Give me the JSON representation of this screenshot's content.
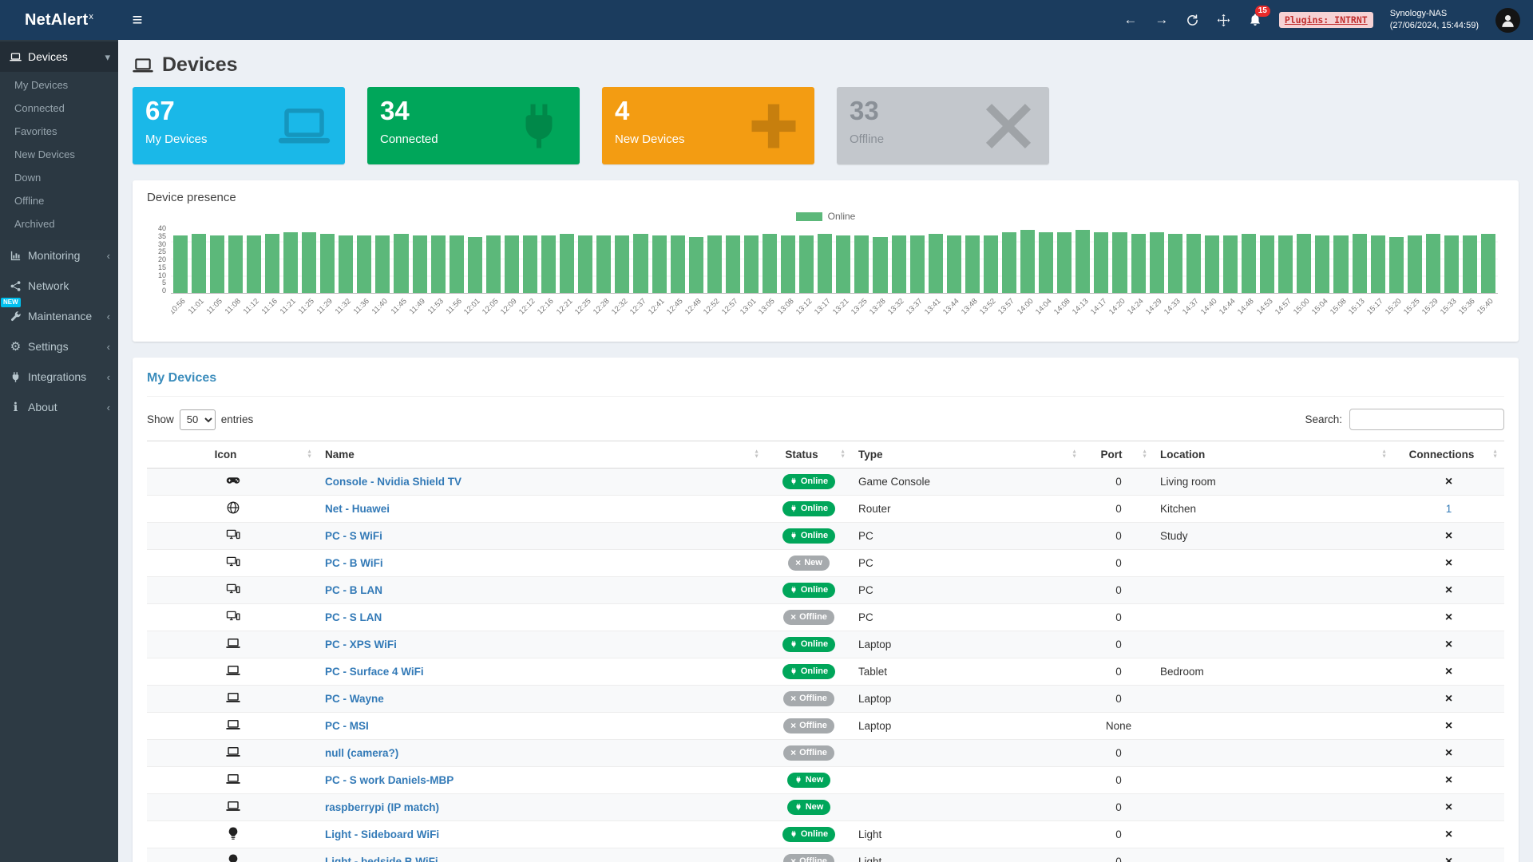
{
  "app": {
    "brand": "NetAlert",
    "brand_sup": "x"
  },
  "topbar": {
    "notifications": "15",
    "plugins_badge": "Plugins: INTRNT",
    "host": "Synology-NAS",
    "timestamp": "(27/06/2024, 15:44:59)"
  },
  "sidebar": {
    "items": [
      {
        "label": "Devices",
        "icon": "laptop-icon",
        "chevron": "down",
        "active": true,
        "children": [
          "My Devices",
          "Connected",
          "Favorites",
          "New Devices",
          "Down",
          "Offline",
          "Archived"
        ]
      },
      {
        "label": "Monitoring",
        "icon": "chart-icon",
        "chevron": "left"
      },
      {
        "label": "Network",
        "icon": "network-icon"
      },
      {
        "label": "Maintenance",
        "icon": "wrench-icon",
        "chevron": "left",
        "badge": "NEW"
      },
      {
        "label": "Settings",
        "icon": "gear-icon",
        "chevron": "left"
      },
      {
        "label": "Integrations",
        "icon": "plug-icon",
        "chevron": "left"
      },
      {
        "label": "About",
        "icon": "info-icon",
        "chevron": "left"
      }
    ]
  },
  "page": {
    "title": "Devices"
  },
  "summary_boxes": [
    {
      "value": "67",
      "label": "My Devices",
      "icon": "laptop-icon",
      "bg": "#1ab8e8",
      "text": "#ffffff"
    },
    {
      "value": "34",
      "label": "Connected",
      "icon": "plug-icon",
      "bg": "#00a65a",
      "text": "#ffffff"
    },
    {
      "value": "4",
      "label": "New Devices",
      "icon": "plus-icon",
      "bg": "#f39c12",
      "text": "#ffffff"
    },
    {
      "value": "33",
      "label": "Offline",
      "icon": "xmark-icon",
      "bg": "#c3c7cc",
      "text": "#8a9097"
    }
  ],
  "presence_panel": {
    "title": "Device presence",
    "legend": "Online"
  },
  "chart_data": {
    "type": "bar",
    "title": "Device presence",
    "series_name": "Online",
    "color": "#5cb87a",
    "xlabel": "",
    "ylabel": "",
    "ylim": [
      0,
      40
    ],
    "ytick_step": 5,
    "legend_position": "top",
    "grid": true,
    "categories": [
      "10:56",
      "11:01",
      "11:05",
      "11:08",
      "11:12",
      "11:16",
      "11:21",
      "11:25",
      "11:29",
      "11:32",
      "11:36",
      "11:40",
      "11:45",
      "11:49",
      "11:53",
      "11:56",
      "12:01",
      "12:05",
      "12:09",
      "12:12",
      "12:16",
      "12:21",
      "12:25",
      "12:28",
      "12:32",
      "12:37",
      "12:41",
      "12:45",
      "12:48",
      "12:52",
      "12:57",
      "13:01",
      "13:05",
      "13:08",
      "13:12",
      "13:17",
      "13:21",
      "13:25",
      "13:28",
      "13:32",
      "13:37",
      "13:41",
      "13:44",
      "13:48",
      "13:52",
      "13:57",
      "14:00",
      "14:04",
      "14:08",
      "14:13",
      "14:17",
      "14:20",
      "14:24",
      "14:29",
      "14:33",
      "14:37",
      "14:40",
      "14:44",
      "14:48",
      "14:53",
      "14:57",
      "15:00",
      "15:04",
      "15:08",
      "15:13",
      "15:17",
      "15:20",
      "15:25",
      "15:29",
      "15:33",
      "15:36",
      "15:40"
    ],
    "values": [
      34,
      35,
      34,
      34,
      34,
      35,
      36,
      36,
      35,
      34,
      34,
      34,
      35,
      34,
      34,
      34,
      33,
      34,
      34,
      34,
      34,
      35,
      34,
      34,
      34,
      35,
      34,
      34,
      33,
      34,
      34,
      34,
      35,
      34,
      34,
      35,
      34,
      34,
      33,
      34,
      34,
      35,
      34,
      34,
      34,
      36,
      37,
      36,
      36,
      37,
      36,
      36,
      35,
      36,
      35,
      35,
      34,
      34,
      35,
      34,
      34,
      35,
      34,
      34,
      35,
      34,
      33,
      34,
      35,
      34,
      34,
      35
    ]
  },
  "devices_panel": {
    "title": "My Devices",
    "show_label": "Show",
    "page_length": "50",
    "entries_label": "entries",
    "search_label": "Search:",
    "columns": [
      "Icon",
      "Name",
      "Status",
      "Type",
      "Port",
      "Location",
      "Connections"
    ],
    "rows": [
      {
        "icon": "gamepad-icon",
        "name": "Console - Nvidia Shield TV",
        "status": "Online",
        "status_color": "green",
        "status_icon": "plug",
        "type": "Game Console",
        "port": "0",
        "location": "Living room",
        "connections": ""
      },
      {
        "icon": "globe-icon",
        "name": "Net - Huawei",
        "status": "Online",
        "status_color": "green",
        "status_icon": "plug",
        "type": "Router",
        "port": "0",
        "location": "Kitchen",
        "connections": "1"
      },
      {
        "icon": "desktop-icon",
        "name": "PC - S WiFi",
        "status": "Online",
        "status_color": "green",
        "status_icon": "plug",
        "type": "PC",
        "port": "0",
        "location": "Study",
        "connections": ""
      },
      {
        "icon": "desktop-icon",
        "name": "PC - B WiFi",
        "status": "New",
        "status_color": "gray",
        "status_icon": "x",
        "type": "PC",
        "port": "0",
        "location": "",
        "connections": ""
      },
      {
        "icon": "desktop-icon",
        "name": "PC - B LAN",
        "status": "Online",
        "status_color": "green",
        "status_icon": "plug",
        "type": "PC",
        "port": "0",
        "location": "",
        "connections": ""
      },
      {
        "icon": "desktop-icon",
        "name": "PC - S LAN",
        "status": "Offline",
        "status_color": "gray",
        "status_icon": "x",
        "type": "PC",
        "port": "0",
        "location": "",
        "connections": ""
      },
      {
        "icon": "laptop-icon",
        "name": "PC - XPS WiFi",
        "status": "Online",
        "status_color": "green",
        "status_icon": "plug",
        "type": "Laptop",
        "port": "0",
        "location": "",
        "connections": ""
      },
      {
        "icon": "laptop-icon",
        "name": "PC - Surface 4 WiFi",
        "status": "Online",
        "status_color": "green",
        "status_icon": "plug",
        "type": "Tablet",
        "port": "0",
        "location": "Bedroom",
        "connections": ""
      },
      {
        "icon": "laptop-icon",
        "name": "PC - Wayne",
        "status": "Offline",
        "status_color": "gray",
        "status_icon": "x",
        "type": "Laptop",
        "port": "0",
        "location": "",
        "connections": ""
      },
      {
        "icon": "laptop-icon",
        "name": "PC - MSI",
        "status": "Offline",
        "status_color": "gray",
        "status_icon": "x",
        "type": "Laptop",
        "port": "None",
        "location": "",
        "connections": ""
      },
      {
        "icon": "laptop-icon",
        "name": "null (camera?)",
        "status": "Offline",
        "status_color": "gray",
        "status_icon": "x",
        "type": "",
        "port": "0",
        "location": "",
        "connections": ""
      },
      {
        "icon": "laptop-icon",
        "name": "PC - S work Daniels-MBP",
        "status": "New",
        "status_color": "green",
        "status_icon": "plug",
        "type": "",
        "port": "0",
        "location": "",
        "connections": ""
      },
      {
        "icon": "laptop-icon",
        "name": "raspberrypi (IP match)",
        "status": "New",
        "status_color": "green",
        "status_icon": "plug",
        "type": "",
        "port": "0",
        "location": "",
        "connections": ""
      },
      {
        "icon": "lightbulb-icon",
        "name": "Light - Sideboard WiFi",
        "status": "Online",
        "status_color": "green",
        "status_icon": "plug",
        "type": "Light",
        "port": "0",
        "location": "",
        "connections": ""
      },
      {
        "icon": "lightbulb-icon",
        "name": "Light - bedside B WiFi",
        "status": "Offline",
        "status_color": "gray",
        "status_icon": "x",
        "type": "Light",
        "port": "0",
        "location": "",
        "connections": ""
      }
    ]
  }
}
